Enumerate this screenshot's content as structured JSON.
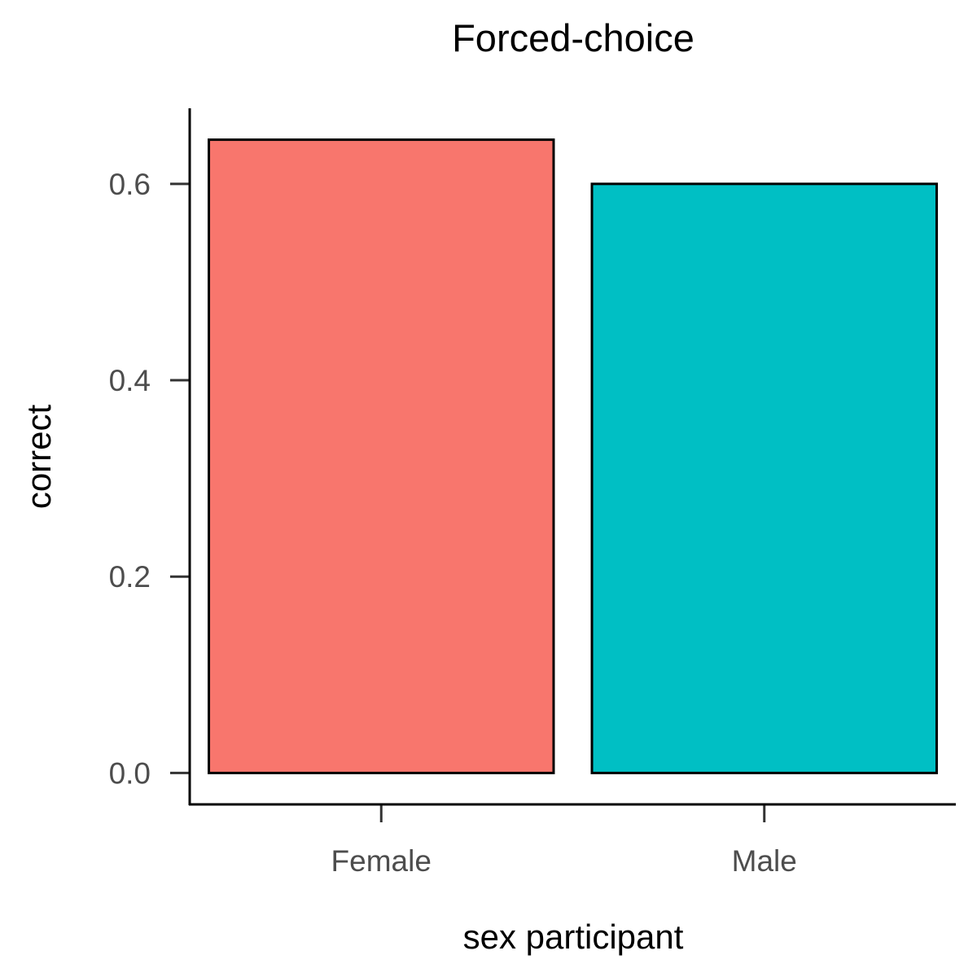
{
  "chart_data": {
    "type": "bar",
    "title": "Forced-choice",
    "xlabel": "sex participant",
    "ylabel": "correct",
    "categories": [
      "Female",
      "Male"
    ],
    "values": [
      0.645,
      0.6
    ],
    "colors": [
      "#F8766D",
      "#00BFC4"
    ],
    "bar_outline_color": "#000000",
    "ylim": [
      -0.032,
      0.677
    ],
    "yticks": [
      0.0,
      0.2,
      0.4,
      0.6
    ],
    "ytick_labels": [
      "0.0",
      "0.2",
      "0.4",
      "0.6"
    ],
    "grid": false,
    "legend": "none"
  }
}
